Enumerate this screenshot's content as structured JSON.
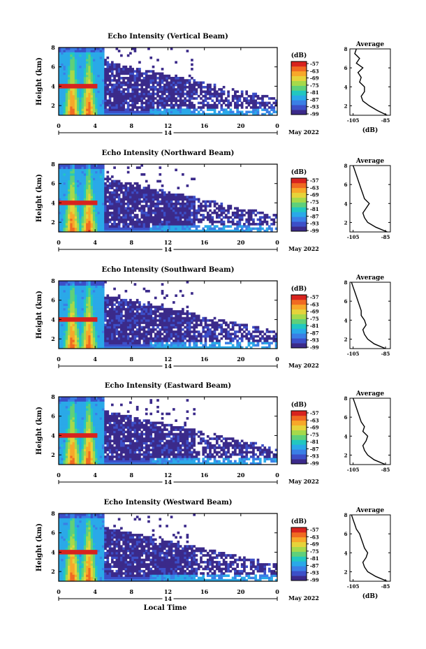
{
  "colorbar": {
    "unit": "(dB)",
    "levels": [
      "-57",
      "-63",
      "-69",
      "-75",
      "-81",
      "-87",
      "-93",
      "-99"
    ],
    "colors": [
      "#3b2a8a",
      "#3c4fc8",
      "#3a7fe6",
      "#2aa9e8",
      "#22c7c0",
      "#5fd07a",
      "#a6d94a",
      "#e6d33a",
      "#f7a82a",
      "#f06a22",
      "#d8231e"
    ]
  },
  "chart_data": [
    {
      "type": "heatmap",
      "title": "Echo Intensity (Vertical Beam)",
      "ylabel": "Height (km)",
      "x_ticks": [
        "0",
        "4",
        "8",
        "12",
        "16",
        "20",
        "0"
      ],
      "x_ticks_values": [
        0,
        4,
        8,
        12,
        16,
        20,
        24
      ],
      "y_ticks": [
        "2",
        "4",
        "6",
        "8"
      ],
      "ylim": [
        1,
        8
      ],
      "xlim": [
        0,
        24
      ],
      "date_center": "14",
      "date_label": "May 2022",
      "colorbar_range_db": [
        -99,
        -57
      ],
      "storm_bands_hours": [
        1.5,
        3.3
      ],
      "bright_band_km": 4.0,
      "profile": {
        "title": "Average",
        "xlabel": "(dB)",
        "x_ticks": [
          "-105",
          "-85"
        ],
        "x_ticks_values": [
          -105,
          -85
        ],
        "xlim": [
          -107,
          -82
        ],
        "ylim": [
          1,
          8
        ],
        "y_ticks": [
          "2",
          "4",
          "6",
          "8"
        ],
        "heights_km": [
          1.0,
          1.5,
          2.0,
          2.5,
          3.0,
          3.5,
          4.0,
          4.5,
          5.0,
          5.5,
          6.0,
          6.5,
          7.0,
          7.5,
          8.0
        ],
        "values_db": [
          -84,
          -90,
          -95,
          -99,
          -100,
          -98,
          -98,
          -101,
          -100,
          -102,
          -99,
          -103,
          -101,
          -104,
          -103
        ]
      }
    },
    {
      "type": "heatmap",
      "title": "Echo Intensity (Northward Beam)",
      "ylabel": "Height (km)",
      "x_ticks": [
        "0",
        "4",
        "8",
        "12",
        "16",
        "20",
        "0"
      ],
      "x_ticks_values": [
        0,
        4,
        8,
        12,
        16,
        20,
        24
      ],
      "y_ticks": [
        "2",
        "4",
        "6",
        "8"
      ],
      "ylim": [
        1,
        8
      ],
      "xlim": [
        0,
        24
      ],
      "date_center": "14",
      "date_label": "May 2022",
      "colorbar_range_db": [
        -99,
        -57
      ],
      "storm_bands_hours": [
        1.5,
        3.3
      ],
      "bright_band_km": 4.0,
      "profile": {
        "title": "Average",
        "xlabel": "",
        "x_ticks": [
          "-105",
          "-85"
        ],
        "x_ticks_values": [
          -105,
          -85
        ],
        "xlim": [
          -107,
          -82
        ],
        "ylim": [
          1,
          8
        ],
        "y_ticks": [
          "2",
          "4",
          "6",
          "8"
        ],
        "heights_km": [
          1.0,
          1.5,
          2.0,
          2.5,
          3.0,
          3.5,
          4.0,
          4.5,
          5.0,
          5.5,
          6.0,
          6.5,
          7.0,
          7.5,
          8.0
        ],
        "values_db": [
          -84,
          -91,
          -96,
          -98,
          -99,
          -97,
          -95,
          -98,
          -99,
          -100,
          -101,
          -102,
          -103,
          -104,
          -105
        ]
      }
    },
    {
      "type": "heatmap",
      "title": "Echo Intensity (Southward Beam)",
      "ylabel": "Height (km)",
      "x_ticks": [
        "0",
        "4",
        "8",
        "12",
        "16",
        "20",
        "0"
      ],
      "x_ticks_values": [
        0,
        4,
        8,
        12,
        16,
        20,
        24
      ],
      "y_ticks": [
        "2",
        "4",
        "6",
        "8"
      ],
      "ylim": [
        1,
        8
      ],
      "xlim": [
        0,
        24
      ],
      "date_center": "14",
      "date_label": "May 2022",
      "colorbar_range_db": [
        -99,
        -57
      ],
      "storm_bands_hours": [
        1.5,
        3.3
      ],
      "bright_band_km": 4.0,
      "profile": {
        "title": "Average",
        "xlabel": "",
        "x_ticks": [
          "-105",
          "-85"
        ],
        "x_ticks_values": [
          -105,
          -85
        ],
        "xlim": [
          -107,
          -82
        ],
        "ylim": [
          1,
          8
        ],
        "y_ticks": [
          "2",
          "4",
          "6",
          "8"
        ],
        "heights_km": [
          1.0,
          1.5,
          2.0,
          2.5,
          3.0,
          3.5,
          4.0,
          4.5,
          5.0,
          5.5,
          6.0,
          6.5,
          7.0,
          7.5,
          8.0
        ],
        "values_db": [
          -85,
          -92,
          -96,
          -98,
          -99,
          -97,
          -98,
          -100,
          -100,
          -101,
          -102,
          -103,
          -104,
          -105,
          -106
        ]
      }
    },
    {
      "type": "heatmap",
      "title": "Echo Intensity (Eastward Beam)",
      "ylabel": "Height (km)",
      "x_ticks": [
        "0",
        "4",
        "8",
        "12",
        "16",
        "20",
        "0"
      ],
      "x_ticks_values": [
        0,
        4,
        8,
        12,
        16,
        20,
        24
      ],
      "y_ticks": [
        "2",
        "4",
        "6",
        "8"
      ],
      "ylim": [
        1,
        8
      ],
      "xlim": [
        0,
        24
      ],
      "date_center": "14",
      "date_label": "May 2022",
      "colorbar_range_db": [
        -99,
        -57
      ],
      "storm_bands_hours": [
        1.5,
        3.3
      ],
      "bright_band_km": 4.0,
      "profile": {
        "title": "Average",
        "xlabel": "",
        "x_ticks": [
          "-105",
          "-85"
        ],
        "x_ticks_values": [
          -105,
          -85
        ],
        "xlim": [
          -107,
          -82
        ],
        "ylim": [
          1,
          8
        ],
        "y_ticks": [
          "2",
          "4",
          "6",
          "8"
        ],
        "heights_km": [
          1.0,
          1.5,
          2.0,
          2.5,
          3.0,
          3.5,
          4.0,
          4.5,
          5.0,
          5.5,
          6.0,
          6.5,
          7.0,
          7.5,
          8.0
        ],
        "values_db": [
          -85,
          -92,
          -96,
          -98,
          -99,
          -97,
          -96,
          -99,
          -98,
          -100,
          -101,
          -102,
          -103,
          -104,
          -105
        ]
      }
    },
    {
      "type": "heatmap",
      "title": "Echo Intensity (Westward Beam)",
      "ylabel": "Height (km)",
      "x_ticks": [
        "0",
        "4",
        "8",
        "12",
        "16",
        "20",
        "0"
      ],
      "x_ticks_values": [
        0,
        4,
        8,
        12,
        16,
        20,
        24
      ],
      "y_ticks": [
        "2",
        "4",
        "6",
        "8"
      ],
      "ylim": [
        1,
        8
      ],
      "xlim": [
        0,
        24
      ],
      "date_center": "14",
      "date_label": "May 2022",
      "xlabel": "Local Time",
      "colorbar_range_db": [
        -99,
        -57
      ],
      "storm_bands_hours": [
        1.5,
        3.3
      ],
      "bright_band_km": 4.0,
      "profile": {
        "title": "Average",
        "xlabel": "(dB)",
        "x_ticks": [
          "-105",
          "-85"
        ],
        "x_ticks_values": [
          -105,
          -85
        ],
        "xlim": [
          -107,
          -82
        ],
        "ylim": [
          1,
          8
        ],
        "y_ticks": [
          "2",
          "4",
          "6",
          "8"
        ],
        "heights_km": [
          1.0,
          1.5,
          2.0,
          2.5,
          3.0,
          3.5,
          4.0,
          4.5,
          5.0,
          5.5,
          6.0,
          6.5,
          7.0,
          7.5,
          8.0
        ],
        "values_db": [
          -84,
          -91,
          -96,
          -98,
          -99,
          -97,
          -96,
          -98,
          -99,
          -100,
          -101,
          -103,
          -104,
          -105,
          -106
        ]
      }
    }
  ]
}
